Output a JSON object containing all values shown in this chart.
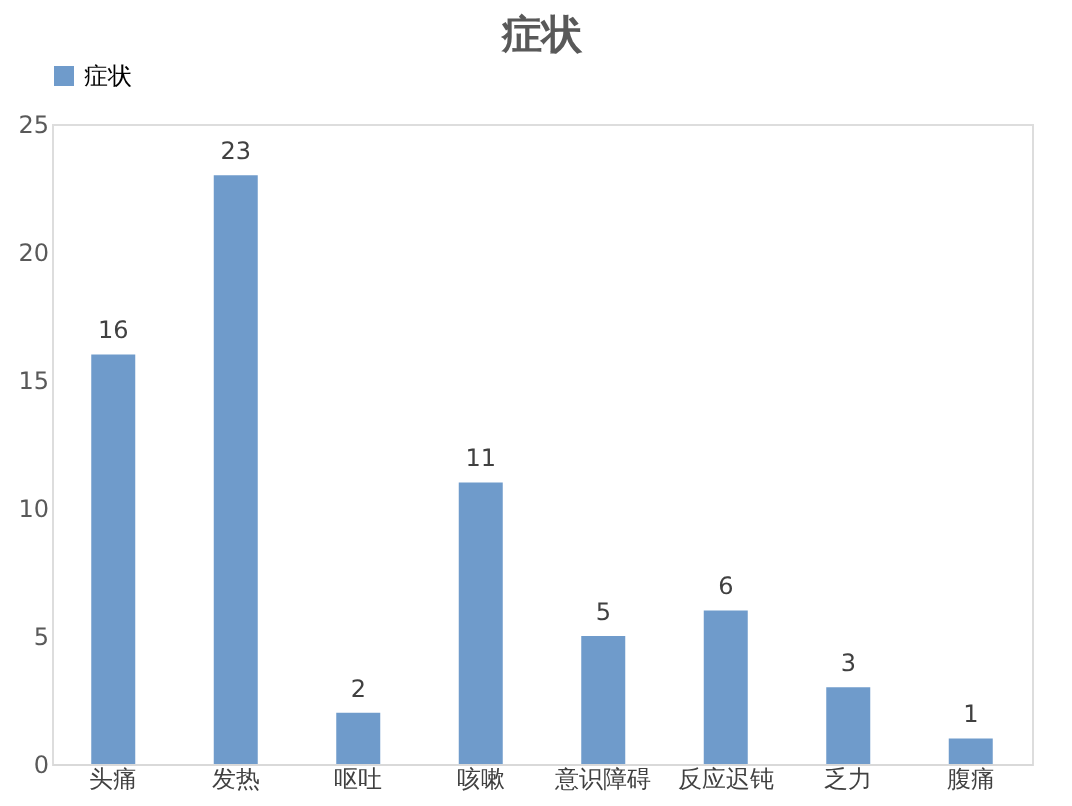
{
  "chart_data": {
    "type": "bar",
    "title": "症状",
    "categories": [
      "头痛",
      "发热",
      "呕吐",
      "咳嗽",
      "意识障碍",
      "反应迟钝",
      "乏力",
      "腹痛"
    ],
    "series": [
      {
        "name": "症状",
        "color": "#6f9bcb",
        "values": [
          16,
          23,
          2,
          11,
          5,
          6,
          3,
          1
        ]
      }
    ],
    "ylim": [
      0,
      25
    ],
    "yticks": [
      0,
      5,
      10,
      15,
      20,
      25
    ],
    "grid": false,
    "legend": "top",
    "data_labels": true
  }
}
